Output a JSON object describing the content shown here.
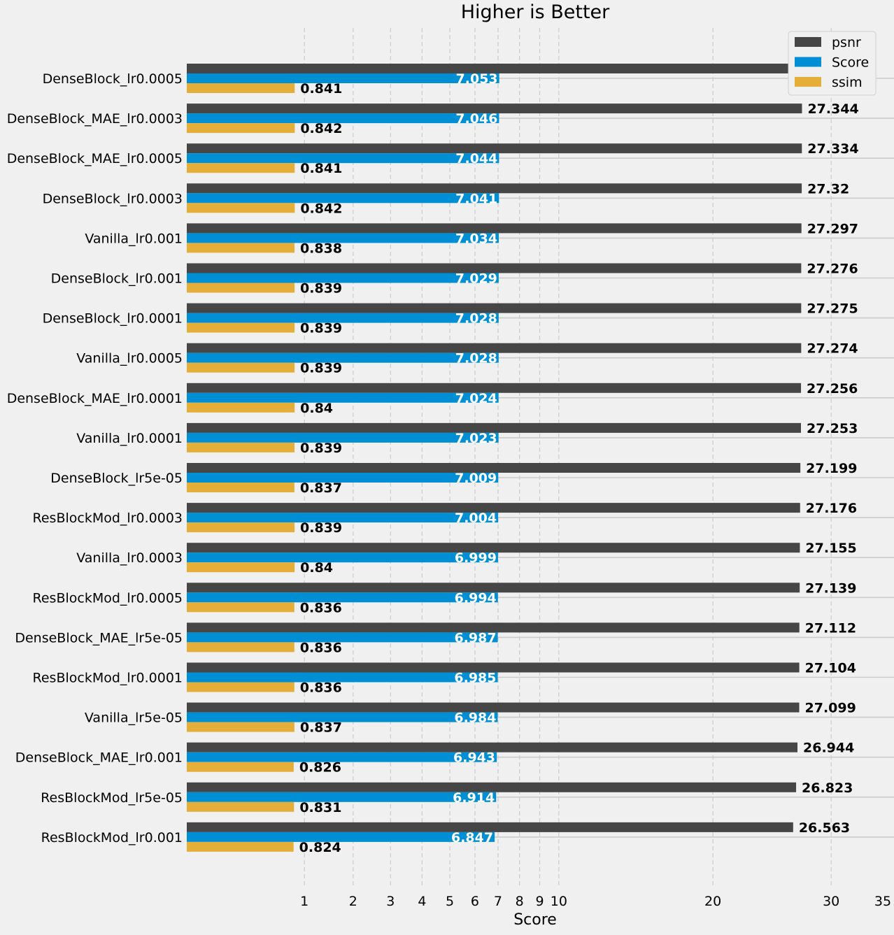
{
  "chart_data": {
    "type": "bar",
    "orientation": "horizontal",
    "title": "Higher is Better",
    "xlabel": "Score",
    "ylabel": "",
    "xlim": [
      0,
      35
    ],
    "x_scale": "sqrt",
    "xticks": [
      1,
      2,
      3,
      4,
      5,
      6,
      7,
      8,
      9,
      10,
      20,
      30,
      35
    ],
    "grid": true,
    "legend_position": "top-right",
    "categories": [
      "DenseBlock_lr0.0005",
      "DenseBlock_MAE_lr0.0003",
      "DenseBlock_MAE_lr0.0005",
      "DenseBlock_lr0.0003",
      "Vanilla_lr0.001",
      "DenseBlock_lr0.001",
      "DenseBlock_lr0.0001",
      "Vanilla_lr0.0005",
      "DenseBlock_MAE_lr0.0001",
      "Vanilla_lr0.0001",
      "DenseBlock_lr5e-05",
      "ResBlockMod_lr0.0003",
      "Vanilla_lr0.0003",
      "ResBlockMod_lr0.0005",
      "DenseBlock_MAE_lr5e-05",
      "ResBlockMod_lr0.0001",
      "Vanilla_lr5e-05",
      "DenseBlock_MAE_lr0.001",
      "ResBlockMod_lr5e-05",
      "ResBlockMod_lr0.001"
    ],
    "series": [
      {
        "name": "psnr",
        "color": "#464646",
        "label_color": "#000000",
        "value_labels": [
          "27.369",
          "27.344",
          "27.334",
          "27.32",
          "27.297",
          "27.276",
          "27.275",
          "27.274",
          "27.256",
          "27.253",
          "27.199",
          "27.176",
          "27.155",
          "27.139",
          "27.112",
          "27.104",
          "27.099",
          "26.944",
          "26.823",
          "26.563"
        ],
        "values": [
          27.369,
          27.344,
          27.334,
          27.32,
          27.297,
          27.276,
          27.275,
          27.274,
          27.256,
          27.253,
          27.199,
          27.176,
          27.155,
          27.139,
          27.112,
          27.104,
          27.099,
          26.944,
          26.823,
          26.563
        ]
      },
      {
        "name": "Score",
        "color": "#008fd5",
        "label_color": "#ffffff",
        "value_labels": [
          "7.053",
          "7.046",
          "7.044",
          "7.041",
          "7.034",
          "7.029",
          "7.028",
          "7.028",
          "7.024",
          "7.023",
          "7.009",
          "7.004",
          "6.999",
          "6.994",
          "6.987",
          "6.985",
          "6.984",
          "6.943",
          "6.914",
          "6.847"
        ],
        "values": [
          7.053,
          7.046,
          7.044,
          7.041,
          7.034,
          7.029,
          7.028,
          7.028,
          7.024,
          7.023,
          7.009,
          7.004,
          6.999,
          6.994,
          6.987,
          6.985,
          6.984,
          6.943,
          6.914,
          6.847
        ]
      },
      {
        "name": "ssim",
        "color": "#e5ae38",
        "label_color": "#000000",
        "value_labels": [
          "0.841",
          "0.842",
          "0.841",
          "0.842",
          "0.838",
          "0.839",
          "0.839",
          "0.839",
          "0.84",
          "0.839",
          "0.837",
          "0.839",
          "0.84",
          "0.836",
          "0.836",
          "0.836",
          "0.837",
          "0.826",
          "0.831",
          "0.824"
        ],
        "values": [
          0.841,
          0.842,
          0.841,
          0.842,
          0.838,
          0.839,
          0.839,
          0.839,
          0.84,
          0.839,
          0.837,
          0.839,
          0.84,
          0.836,
          0.836,
          0.836,
          0.837,
          0.826,
          0.831,
          0.824
        ]
      }
    ]
  }
}
